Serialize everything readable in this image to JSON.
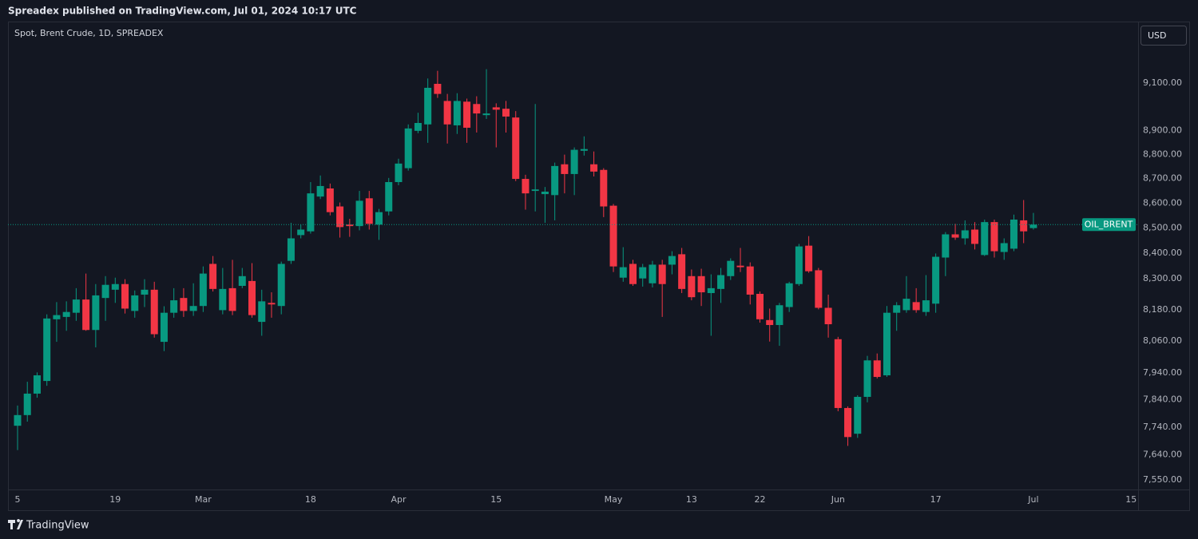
{
  "header": "Spreadex published on TradingView.com, Jul 01, 2024 10:17 UTC",
  "footer": "TradingView",
  "chart_data": {
    "type": "candlestick",
    "title": "Spot, Brent Crude, 1D, SPREADEX",
    "currency": "USD",
    "last_label": "OIL_BRENT",
    "up_color": "#089981",
    "down_color": "#f23645",
    "log_scale": true,
    "grid": false,
    "ylim": [
      7519,
      9364
    ],
    "yticks": [
      {
        "value": 7550,
        "label": "7,550.00"
      },
      {
        "value": 7640,
        "label": "7,640.00"
      },
      {
        "value": 7740,
        "label": "7,740.00"
      },
      {
        "value": 7840,
        "label": "7,840.00"
      },
      {
        "value": 7940,
        "label": "7,940.00"
      },
      {
        "value": 8060,
        "label": "8,060.00"
      },
      {
        "value": 8180,
        "label": "8,180.00"
      },
      {
        "value": 8300,
        "label": "8,300.00"
      },
      {
        "value": 8400,
        "label": "8,400.00"
      },
      {
        "value": 8500,
        "label": "8,500.00"
      },
      {
        "value": 8600,
        "label": "8,600.00"
      },
      {
        "value": 8700,
        "label": "8,700.00"
      },
      {
        "value": 8800,
        "label": "8,800.00"
      },
      {
        "value": 8900,
        "label": "8,900.00"
      },
      {
        "value": 9100,
        "label": "9,100.00"
      }
    ],
    "categories": [
      "5",
      null,
      null,
      null,
      null,
      null,
      null,
      null,
      null,
      null,
      "19",
      null,
      null,
      null,
      null,
      null,
      null,
      null,
      null,
      "Mar",
      null,
      null,
      null,
      null,
      null,
      null,
      null,
      null,
      null,
      null,
      "18",
      null,
      null,
      null,
      null,
      null,
      null,
      null,
      null,
      "Apr",
      null,
      null,
      null,
      null,
      null,
      null,
      null,
      null,
      null,
      "15",
      null,
      null,
      null,
      null,
      null,
      null,
      null,
      null,
      null,
      null,
      null,
      "May",
      null,
      null,
      null,
      null,
      null,
      null,
      null,
      "13",
      null,
      null,
      null,
      null,
      null,
      null,
      "22",
      null,
      null,
      null,
      null,
      null,
      null,
      null,
      "Jun",
      null,
      null,
      null,
      null,
      null,
      null,
      null,
      null,
      null,
      "17",
      null,
      null,
      null,
      null,
      null,
      null,
      null,
      null,
      null,
      "Jul",
      null,
      null,
      null,
      null,
      null,
      null,
      null,
      null,
      null,
      "15"
    ],
    "open": [
      7745,
      7784,
      7863,
      7910,
      8143,
      8152,
      8168,
      8219,
      8102,
      8225,
      8257,
      8279,
      8175,
      8238,
      8257,
      8057,
      8168,
      8225,
      8175,
      8194,
      8358,
      8178,
      8263,
      8272,
      8291,
      8133,
      8206,
      8194,
      8370,
      8472,
      8487,
      8627,
      8660,
      8587,
      8514,
      8508,
      8620,
      8514,
      8567,
      8686,
      8743,
      8898,
      8925,
      9097,
      9024,
      8921,
      9021,
      9011,
      8964,
      8997,
      8991,
      8954,
      8699,
      8650,
      8637,
      8633,
      8759,
      8719,
      8815,
      8759,
      8736,
      8590,
      8304,
      8358,
      8301,
      8282,
      8355,
      8355,
      8396,
      8310,
      8310,
      8244,
      8260,
      8310,
      8351,
      8348,
      8241,
      8140,
      8121,
      8190,
      8279,
      8430,
      8333,
      8187,
      8067,
      7810,
      7716,
      7851,
      7987,
      7931,
      8168,
      8178,
      8209,
      8171,
      8203,
      8383,
      8475,
      8459,
      8494,
      8393,
      8524,
      8405,
      8418,
      8531,
      8500,
      null,
      null,
      null,
      null,
      null,
      null,
      null,
      null,
      null,
      null
    ],
    "high": [
      7819,
      7907,
      7942,
      8162,
      8209,
      8212,
      8263,
      8320,
      8279,
      8310,
      8304,
      8298,
      8254,
      8298,
      8288,
      8193,
      8263,
      8263,
      8282,
      8348,
      8389,
      8342,
      8374,
      8342,
      8361,
      8257,
      8247,
      8367,
      8521,
      8514,
      8686,
      8713,
      8680,
      8603,
      8537,
      8650,
      8650,
      8577,
      8703,
      8782,
      8925,
      8974,
      9120,
      9153,
      9054,
      9057,
      9034,
      9044,
      9160,
      9014,
      9024,
      8981,
      8716,
      9011,
      8666,
      8766,
      8799,
      8829,
      8875,
      8812,
      8743,
      8597,
      8424,
      8374,
      8358,
      8370,
      8374,
      8408,
      8421,
      8336,
      8339,
      8317,
      8342,
      8380,
      8421,
      8364,
      8250,
      8184,
      8206,
      8288,
      8437,
      8468,
      8342,
      8238,
      8076,
      7816,
      7857,
      8004,
      8013,
      8194,
      8209,
      8310,
      8263,
      8314,
      8399,
      8484,
      8517,
      8531,
      8524,
      8534,
      8534,
      8459,
      8554,
      8613,
      8561,
      null,
      null,
      null,
      null,
      null,
      null,
      null,
      null,
      null,
      null
    ],
    "low": [
      7657,
      7760,
      7848,
      7892,
      8057,
      8099,
      8137,
      8099,
      8036,
      8137,
      8206,
      8165,
      8149,
      8190,
      8073,
      8022,
      8149,
      8152,
      8156,
      8171,
      8250,
      8162,
      8159,
      8263,
      8149,
      8080,
      8149,
      8162,
      8358,
      8459,
      8478,
      8617,
      8551,
      8462,
      8465,
      8491,
      8494,
      8453,
      8551,
      8673,
      8733,
      8888,
      8848,
      9037,
      8845,
      8885,
      8848,
      8891,
      8948,
      8829,
      8891,
      8690,
      8574,
      8567,
      8521,
      8531,
      8640,
      8633,
      8795,
      8709,
      8544,
      8326,
      8288,
      8272,
      8269,
      8266,
      8152,
      8317,
      8244,
      8216,
      8194,
      8080,
      8206,
      8295,
      8326,
      8200,
      8130,
      8058,
      8042,
      8171,
      8272,
      8323,
      8181,
      8073,
      7798,
      7672,
      7701,
      7831,
      7919,
      7925,
      8099,
      8168,
      8168,
      8156,
      8168,
      8310,
      8453,
      8434,
      8415,
      8389,
      8383,
      8374,
      8408,
      8440,
      8494,
      null,
      null,
      null,
      null,
      null,
      null,
      null,
      null,
      null,
      null
    ],
    "close": [
      7784,
      7863,
      7931,
      8146,
      8159,
      8171,
      8219,
      8102,
      8235,
      8276,
      8279,
      8184,
      8235,
      8257,
      8086,
      8168,
      8216,
      8175,
      8194,
      8320,
      8260,
      8260,
      8175,
      8310,
      8159,
      8212,
      8200,
      8358,
      8459,
      8494,
      8640,
      8670,
      8564,
      8504,
      8508,
      8610,
      8517,
      8564,
      8686,
      8762,
      8908,
      8931,
      9080,
      9054,
      8925,
      9024,
      8911,
      8971,
      8971,
      8987,
      8958,
      8699,
      8640,
      8656,
      8647,
      8752,
      8719,
      8819,
      8822,
      8729,
      8587,
      8348,
      8345,
      8279,
      8345,
      8355,
      8279,
      8389,
      8260,
      8228,
      8247,
      8263,
      8314,
      8370,
      8345,
      8238,
      8143,
      8121,
      8197,
      8282,
      8427,
      8329,
      8187,
      8124,
      7810,
      7704,
      7851,
      7987,
      7925,
      8168,
      8197,
      8222,
      8178,
      8216,
      8386,
      8475,
      8462,
      8491,
      8437,
      8524,
      8408,
      8440,
      8534,
      8487,
      8514,
      null,
      null,
      null,
      null,
      null,
      null,
      null,
      null,
      null,
      null
    ]
  }
}
